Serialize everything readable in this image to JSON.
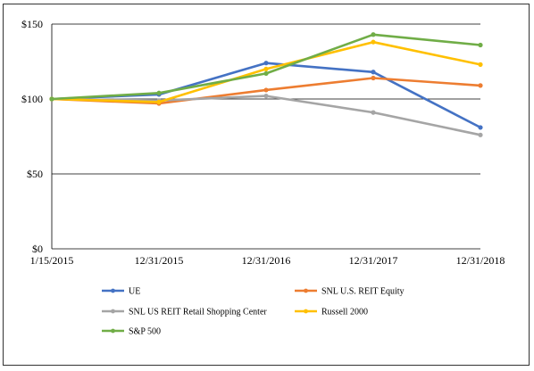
{
  "chart_data": {
    "type": "line",
    "title": "",
    "xlabel": "",
    "ylabel": "",
    "categories": [
      "1/15/2015",
      "12/31/2015",
      "12/31/2016",
      "12/31/2017",
      "12/31/2018"
    ],
    "y_ticks": [
      "$0",
      "$50",
      "$100",
      "$150"
    ],
    "ylim": [
      0,
      150
    ],
    "grid": "horizontal at $50, $100 and $150",
    "legend_position": "bottom",
    "series": [
      {
        "name": "UE",
        "color": "#4472C4",
        "values": [
          100,
          103,
          124,
          118,
          81
        ]
      },
      {
        "name": "SNL U.S. REIT Equity",
        "color": "#ED7D31",
        "values": [
          100,
          97,
          106,
          114,
          109
        ]
      },
      {
        "name": "SNL US REIT Retail Shopping Center",
        "color": "#A5A5A5",
        "values": [
          100,
          99,
          102,
          91,
          76
        ]
      },
      {
        "name": "Russell 2000",
        "color": "#FFC000",
        "values": [
          100,
          98,
          120,
          138,
          123
        ]
      },
      {
        "name": "S&P 500",
        "color": "#70AD47",
        "values": [
          100,
          104,
          117,
          143,
          136
        ]
      }
    ]
  }
}
